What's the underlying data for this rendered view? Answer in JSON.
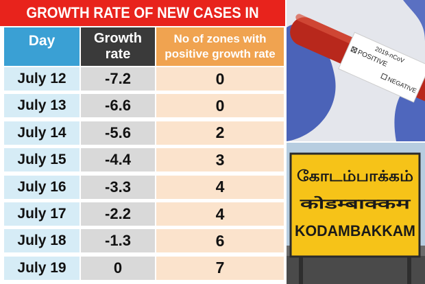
{
  "title": "GROWTH RATE OF NEW CASES IN CITY",
  "headers": {
    "day": "Day",
    "growth_rate": "Growth rate",
    "zones": "No of zones with positive growth rate"
  },
  "chart_data": {
    "type": "table",
    "title": "GROWTH RATE OF NEW CASES IN CITY",
    "columns": [
      "Day",
      "Growth rate",
      "No of zones with positive growth rate"
    ],
    "rows": [
      {
        "day": "July 12",
        "growth": "-7.2",
        "zones": "0"
      },
      {
        "day": "July 13",
        "growth": "-6.6",
        "zones": "0"
      },
      {
        "day": "July 14",
        "growth": "-5.6",
        "zones": "2"
      },
      {
        "day": "July 15",
        "growth": "-4.4",
        "zones": "3"
      },
      {
        "day": "July 16",
        "growth": "-3.3",
        "zones": "4"
      },
      {
        "day": "July 17",
        "growth": "-2.2",
        "zones": "4"
      },
      {
        "day": "July 18",
        "growth": "-1.3",
        "zones": "6"
      },
      {
        "day": "July 19",
        "growth": "0",
        "zones": "7"
      }
    ]
  },
  "photo_tube": {
    "label_top": "2019-nCoV",
    "positive": "POSITIVE",
    "negative": "NEGATIVE"
  },
  "photo_board": {
    "line1": "கோடம்பாக்கம்",
    "line2": "कोडम्बाक्कम",
    "line3": "KODAMBAKKAM"
  },
  "colors": {
    "title_bg": "#e8231c",
    "day_header": "#3aa0d4",
    "growth_header": "#3a3a3a",
    "zones_header": "#f0a350",
    "day_cell": "#d6ecf6",
    "growth_cell": "#d9d9d9",
    "zones_cell": "#fbe3cc",
    "board_yellow": "#f6c318"
  }
}
